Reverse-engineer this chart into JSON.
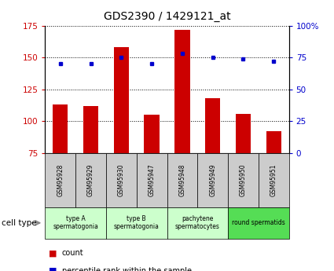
{
  "title": "GDS2390 / 1429121_at",
  "samples": [
    "GSM95928",
    "GSM95929",
    "GSM95930",
    "GSM95947",
    "GSM95948",
    "GSM95949",
    "GSM95950",
    "GSM95951"
  ],
  "counts": [
    113,
    112,
    158,
    105,
    172,
    118,
    106,
    92
  ],
  "percentiles": [
    70,
    70,
    75,
    70,
    78,
    75,
    74,
    72
  ],
  "ylim_left": [
    75,
    175
  ],
  "ylim_right": [
    0,
    100
  ],
  "yticks_left": [
    75,
    100,
    125,
    150,
    175
  ],
  "yticks_right": [
    0,
    25,
    50,
    75,
    100
  ],
  "ytick_labels_right": [
    "0",
    "25",
    "50",
    "75",
    "100%"
  ],
  "bar_color": "#cc0000",
  "dot_color": "#0000cc",
  "groups": [
    {
      "label": "type A\nspermatogonia",
      "indices": [
        0,
        1
      ],
      "color": "#ccffcc"
    },
    {
      "label": "type B\nspermatogonia",
      "indices": [
        2,
        3
      ],
      "color": "#ccffcc"
    },
    {
      "label": "pachytene\nspermatocytes",
      "indices": [
        4,
        5
      ],
      "color": "#ccffcc"
    },
    {
      "label": "round spermatids",
      "indices": [
        6,
        7
      ],
      "color": "#55dd55"
    }
  ],
  "sample_box_color": "#cccccc",
  "cell_type_label": "cell type",
  "legend_count_label": "count",
  "legend_pct_label": "percentile rank within the sample",
  "background_color": "#ffffff",
  "tick_color_left": "#cc0000",
  "tick_color_right": "#0000cc"
}
